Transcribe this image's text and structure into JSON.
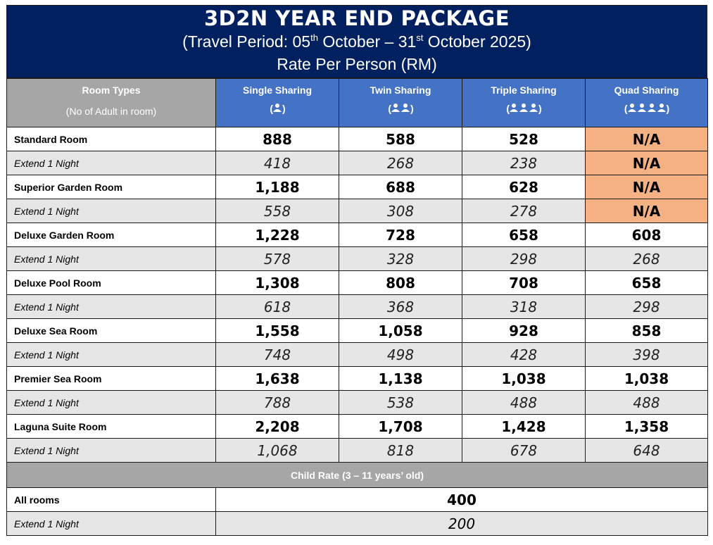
{
  "header": {
    "title": "3D2N YEAR END PACKAGE",
    "period_prefix": "(Travel Period: 05",
    "period_sup1": "th",
    "period_mid": " October – 31",
    "period_sup2": "st",
    "period_suffix": " October 2025)",
    "rate_line": "Rate Per Person (RM)"
  },
  "columns": {
    "room_types": "Room Types",
    "room_types_sub": "(No of Adult in room)",
    "single": "Single Sharing",
    "twin": "Twin Sharing",
    "triple": "Triple Sharing",
    "quad": "Quad Sharing",
    "icons": [
      "person-1-icon",
      "person-2-icon",
      "person-3-icon",
      "person-4-icon"
    ]
  },
  "rows": [
    {
      "label": "Standard Room",
      "single": "888",
      "twin": "588",
      "triple": "528",
      "quad": "N/A"
    },
    {
      "label": "Extend 1 Night",
      "single": "418",
      "twin": "268",
      "triple": "238",
      "quad": "N/A"
    },
    {
      "label": "Superior Garden Room",
      "single": "1,188",
      "twin": "688",
      "triple": "628",
      "quad": "N/A"
    },
    {
      "label": "Extend 1 Night",
      "single": "558",
      "twin": "308",
      "triple": "278",
      "quad": "N/A"
    },
    {
      "label": "Deluxe Garden Room",
      "single": "1,228",
      "twin": "728",
      "triple": "658",
      "quad": "608"
    },
    {
      "label": "Extend 1 Night",
      "single": "578",
      "twin": "328",
      "triple": "298",
      "quad": "268"
    },
    {
      "label": "Deluxe Pool Room",
      "single": "1,308",
      "twin": "808",
      "triple": "708",
      "quad": "658"
    },
    {
      "label": "Extend 1 Night",
      "single": "618",
      "twin": "368",
      "triple": "318",
      "quad": "298"
    },
    {
      "label": "Deluxe Sea Room",
      "single": "1,558",
      "twin": "1,058",
      "triple": "928",
      "quad": "858"
    },
    {
      "label": "Extend 1 Night",
      "single": "748",
      "twin": "498",
      "triple": "428",
      "quad": "398"
    },
    {
      "label": "Premier Sea Room",
      "single": "1,638",
      "twin": "1,138",
      "triple": "1,038",
      "quad": "1,038"
    },
    {
      "label": "Extend 1 Night",
      "single": "788",
      "twin": "538",
      "triple": "488",
      "quad": "488"
    },
    {
      "label": "Laguna Suite Room",
      "single": "2,208",
      "twin": "1,708",
      "triple": "1,428",
      "quad": "1,358"
    },
    {
      "label": "Extend 1 Night",
      "single": "1,068",
      "twin": "818",
      "triple": "678",
      "quad": "648"
    }
  ],
  "child": {
    "heading": "Child Rate (3 – 11 years’ old)",
    "all_rooms_label": "All rooms",
    "all_rooms_value": "400",
    "extend_label": "Extend 1 Night",
    "extend_value": "200"
  },
  "colors": {
    "header_bg": "#002060",
    "column_header_bg": "#4472c4",
    "grey_header_bg": "#a6a6a6",
    "na_bg": "#f4b183",
    "extend_row_bg": "#e6e6e6"
  }
}
